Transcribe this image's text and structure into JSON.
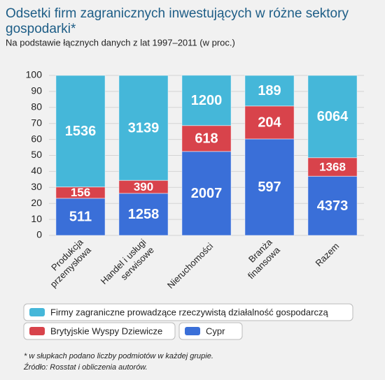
{
  "chart_data": {
    "type": "stacked_bar",
    "title": "Odsetki firm zagranicznych inwestujących w różne sektory gospodarki*",
    "subtitle": "Na podstawie łącznych danych z lat 1997–2011 (w proc.)",
    "categories": [
      "Produkcja\nprzemysłowa",
      "Handel i usługi\nserwisowe",
      "Nieruchomości",
      "Branża\nfinansowa",
      "Razem"
    ],
    "series": [
      {
        "name": "Cypr",
        "color": "#3a6fd8",
        "values": [
          23.2,
          26.3,
          52.5,
          60.3,
          37.0
        ],
        "counts": [
          511,
          1258,
          2007,
          597,
          4373
        ]
      },
      {
        "name": "Brytyjskie Wyspy Dziewicze",
        "color": "#d8434b",
        "values": [
          7.1,
          8.1,
          16.2,
          20.6,
          11.6
        ],
        "counts": [
          156,
          390,
          618,
          204,
          1368
        ]
      },
      {
        "name": "Firmy zagraniczne prowadzące rzeczywistą działalność gospodarczą",
        "color": "#45b7d9",
        "values": [
          69.7,
          65.6,
          31.4,
          19.1,
          51.4
        ],
        "counts": [
          1536,
          3139,
          1200,
          189,
          6064
        ]
      }
    ],
    "ylim": [
      0,
      100
    ],
    "yticks": [
      0,
      10,
      20,
      30,
      40,
      50,
      60,
      70,
      80,
      90,
      100
    ],
    "grid": true,
    "notes": [
      "* w słupkach podano liczby podmiotów w każdej grupie.",
      "Źródło: Rosstat i obliczenia autorów."
    ]
  }
}
